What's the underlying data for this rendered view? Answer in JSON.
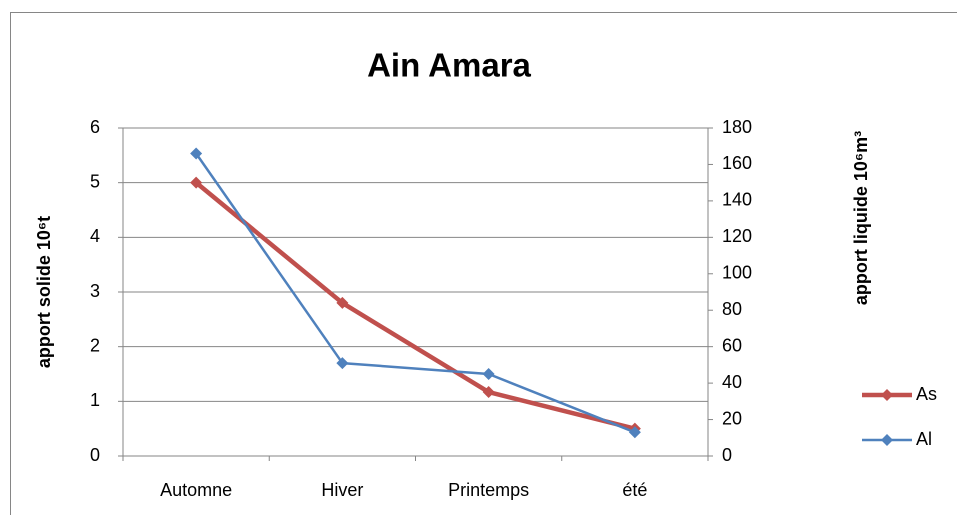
{
  "chart_data": {
    "type": "line",
    "title": "Ain Amara",
    "y_label": "apport solide 10⁶t",
    "y2_label": "apport liquide 10⁶m³",
    "categories": [
      "Automne",
      "Hiver",
      "Printemps",
      "été"
    ],
    "series": [
      {
        "name": "As",
        "color": "#c0504d",
        "values": [
          5.0,
          2.8,
          1.17,
          0.5
        ]
      },
      {
        "name": "Al",
        "color": "#4f81bd",
        "values": [
          166,
          51,
          45,
          13
        ],
        "axis": "y2"
      }
    ],
    "ylim": [
      0,
      6
    ],
    "yticks": [
      0,
      1,
      2,
      3,
      4,
      5,
      6
    ],
    "y2lim": [
      0,
      180
    ],
    "y2ticks": [
      0,
      20,
      40,
      60,
      80,
      100,
      120,
      140,
      160,
      180
    ],
    "grid": true,
    "legend": "right"
  }
}
